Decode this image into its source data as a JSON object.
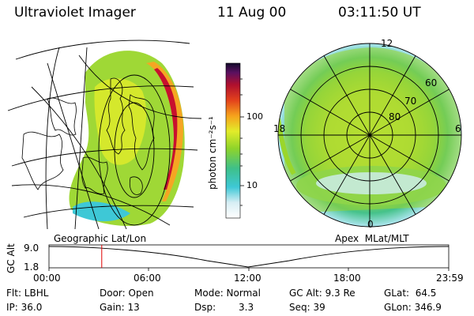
{
  "header": {
    "instrument": "Ultraviolet Imager",
    "date": "11 Aug 00",
    "time": "03:11:50 UT"
  },
  "colorbar": {
    "unit_label": "photon cm⁻²s⁻¹",
    "ticks": [
      "100",
      "10"
    ]
  },
  "left_panel": {
    "caption": "Geographic Lat/Lon"
  },
  "right_panel": {
    "caption": "Apex  MLat/MLT",
    "mlt_labels": {
      "top": "12",
      "left": "18",
      "right": "6",
      "bottom": "0"
    },
    "lat_labels": [
      "60",
      "70",
      "80"
    ]
  },
  "timeline": {
    "axis_label": "GC Alt",
    "y_max": "9.0",
    "y_min": "1.8",
    "ticks": [
      "00:00",
      "06:00",
      "12:00",
      "18:00",
      "23:59"
    ],
    "current_time_fraction": 0.132
  },
  "info": {
    "flt": "Flt: LBHL",
    "ip": "IP: 36.0",
    "door": "Door: Open",
    "gain": "Gain: 13",
    "mode": "Mode: Normal",
    "dsp_label": "Dsp:",
    "dsp_value": "3.3",
    "gc_alt": "GC Alt: 9.3 Re",
    "seq": "Seq: 39",
    "glat": "GLat:  64.5",
    "glon": "GLon: 346.9"
  },
  "colors": {
    "aurora_low": "#2ab7c6",
    "aurora_mid": "#9ad62b",
    "aurora_high": "#f5a623",
    "aurora_peak": "#c8102e"
  }
}
